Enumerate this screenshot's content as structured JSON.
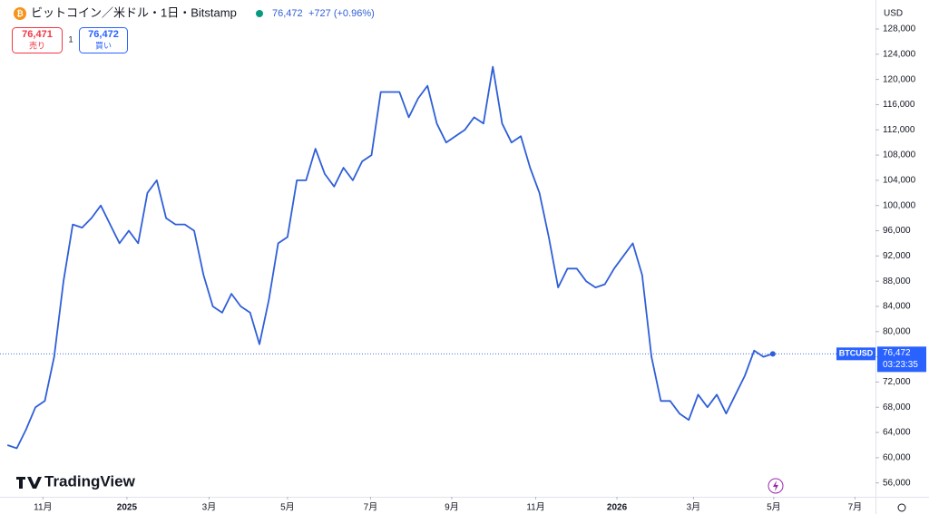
{
  "chart_data": {
    "type": "line",
    "title": "ビットコイン／米ドル・1日・Bitstamp",
    "header_price": "76,472",
    "header_change": "+727 (+0.96%)",
    "sell_price": "76,471",
    "sell_label": "売り",
    "spread": "1",
    "buy_price": "76,472",
    "buy_label": "買い",
    "currency": "USD",
    "symbol": "BTCUSD",
    "last_price": {
      "value": 76472,
      "label": "76,472"
    },
    "countdown": "03:23:35",
    "brand": "TradingView",
    "series": [
      {
        "name": "BTCUSD",
        "color": "#2f5fd8",
        "values": [
          62000,
          61500,
          64500,
          68000,
          69000,
          76000,
          88000,
          97000,
          96500,
          98000,
          100000,
          97000,
          94000,
          96000,
          94000,
          102000,
          104000,
          98000,
          97000,
          97000,
          96000,
          89000,
          84000,
          83000,
          86000,
          84000,
          83000,
          78000,
          85000,
          94000,
          95000,
          104000,
          104000,
          109000,
          105000,
          103000,
          106000,
          104000,
          107000,
          108000,
          118000,
          118000,
          118000,
          114000,
          117000,
          119000,
          113000,
          110000,
          111000,
          112000,
          114000,
          113000,
          122000,
          113000,
          110000,
          111000,
          106000,
          102000,
          95000,
          87000,
          90000,
          90000,
          88000,
          87000,
          87500,
          90000,
          92000,
          94000,
          89000,
          76000,
          69000,
          69000,
          67000,
          66000,
          70000,
          68000,
          70000,
          67000,
          70000,
          73000,
          77000,
          76000,
          76472
        ]
      }
    ],
    "xlim": [
      -0.8,
      93
    ],
    "xticks": [
      {
        "value": 3.8,
        "label": "11月"
      },
      {
        "value": 12.8,
        "label": "2025"
      },
      {
        "value": 21.6,
        "label": "3月"
      },
      {
        "value": 30.0,
        "label": "5月"
      },
      {
        "value": 38.9,
        "label": "7月"
      },
      {
        "value": 47.6,
        "label": "9月"
      },
      {
        "value": 56.6,
        "label": "11月"
      },
      {
        "value": 65.3,
        "label": "2026"
      },
      {
        "value": 73.5,
        "label": "3月"
      },
      {
        "value": 82.1,
        "label": "5月"
      },
      {
        "value": 90.8,
        "label": "7月"
      }
    ],
    "ylim": [
      53800,
      132600
    ],
    "yticks": [
      {
        "value": 56000,
        "label": "56,000"
      },
      {
        "value": 60000,
        "label": "60,000"
      },
      {
        "value": 64000,
        "label": "64,000"
      },
      {
        "value": 68000,
        "label": "68,000"
      },
      {
        "value": 72000,
        "label": "72,000"
      },
      {
        "value": 76000,
        "label": "76,000"
      },
      {
        "value": 80000,
        "label": "80,000"
      },
      {
        "value": 84000,
        "label": "84,000"
      },
      {
        "value": 88000,
        "label": "88,000"
      },
      {
        "value": 92000,
        "label": "92,000"
      },
      {
        "value": 96000,
        "label": "96,000"
      },
      {
        "value": 100000,
        "label": "100,000"
      },
      {
        "value": 104000,
        "label": "104,000"
      },
      {
        "value": 108000,
        "label": "108,000"
      },
      {
        "value": 112000,
        "label": "112,000"
      },
      {
        "value": 116000,
        "label": "116,000"
      },
      {
        "value": 120000,
        "label": "120,000"
      },
      {
        "value": 124000,
        "label": "124,000"
      },
      {
        "value": 128000,
        "label": "128,000"
      }
    ],
    "grid": false
  }
}
